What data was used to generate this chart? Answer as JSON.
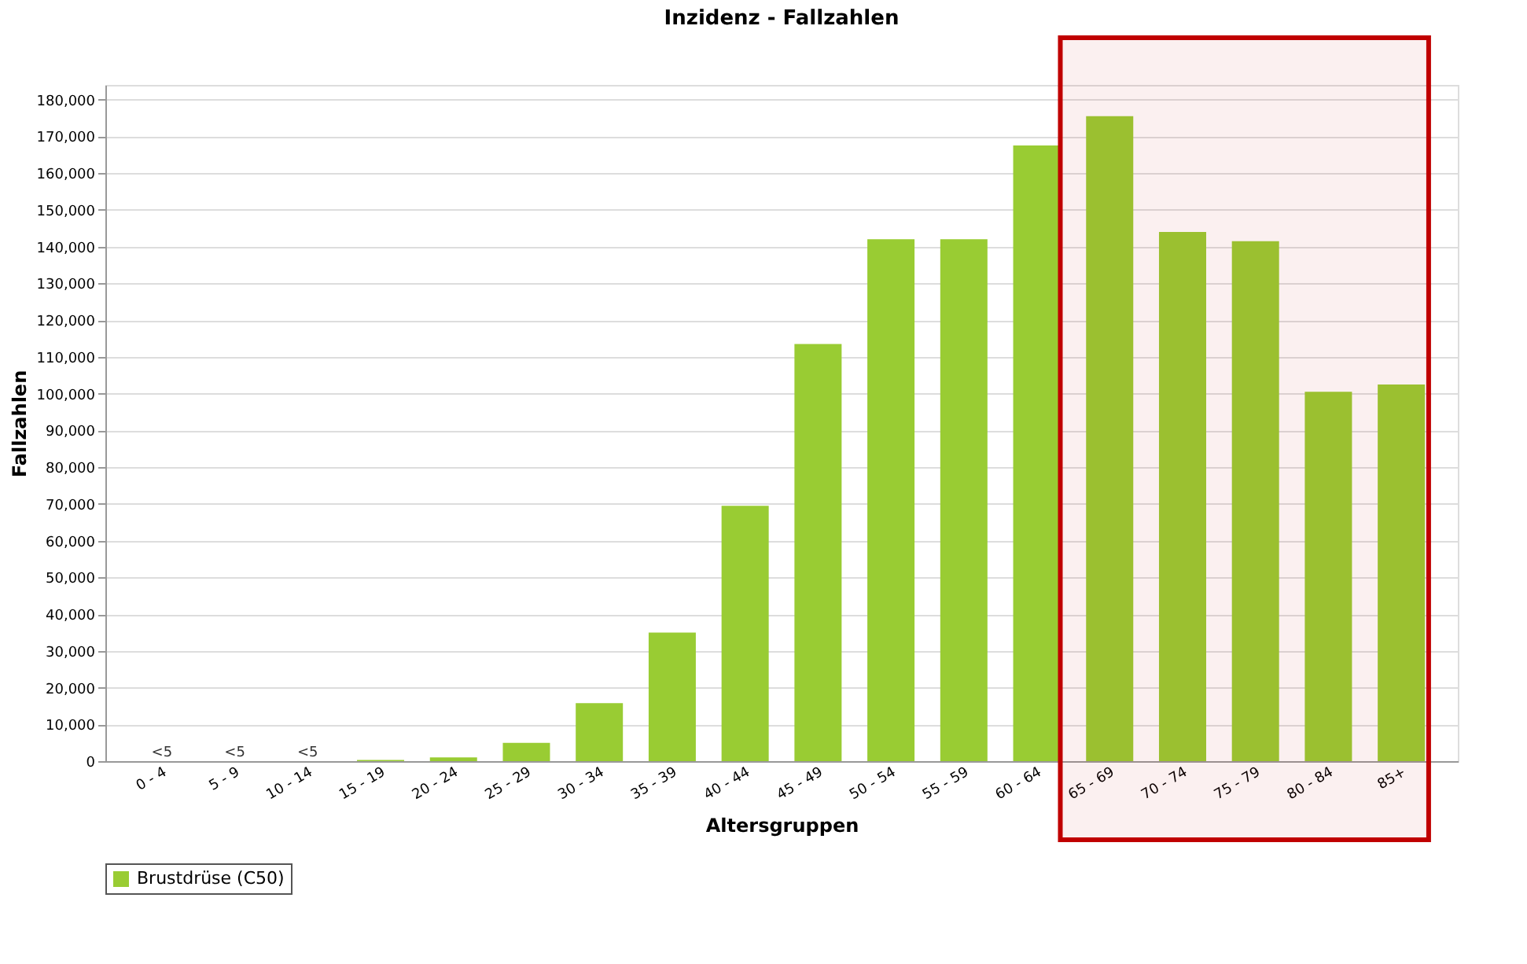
{
  "chart_data": {
    "type": "bar",
    "title": "Inzidenz - Fallzahlen",
    "xlabel": "Altersgruppen",
    "ylabel": "Fallzahlen",
    "categories": [
      "0 - 4",
      "5 - 9",
      "10 - 14",
      "15 - 19",
      "20 - 24",
      "25 - 29",
      "30 - 34",
      "35 - 39",
      "40 - 44",
      "45 - 49",
      "50 - 54",
      "55 - 59",
      "60 - 64",
      "65 - 69",
      "70 - 74",
      "75 - 79",
      "80 - 84",
      "85+"
    ],
    "series": [
      {
        "name": "Brustdrüse (C50)",
        "color": "#99cc33",
        "values": [
          2,
          2,
          2,
          300,
          1000,
          5000,
          15800,
          35000,
          69500,
          113500,
          142000,
          142000,
          167500,
          175500,
          144000,
          141500,
          100500,
          102500
        ],
        "value_labels": [
          "<5",
          "<5",
          "<5",
          null,
          null,
          null,
          null,
          null,
          null,
          null,
          null,
          null,
          null,
          null,
          null,
          null,
          null,
          null
        ]
      }
    ],
    "ylim": [
      0,
      184000
    ],
    "yticks": [
      {
        "value": 0,
        "label": "0"
      },
      {
        "value": 10000,
        "label": "10,000"
      },
      {
        "value": 20000,
        "label": "20,000"
      },
      {
        "value": 30000,
        "label": "30,000"
      },
      {
        "value": 40000,
        "label": "40,000"
      },
      {
        "value": 50000,
        "label": "50,000"
      },
      {
        "value": 60000,
        "label": "60,000"
      },
      {
        "value": 70000,
        "label": "70,000"
      },
      {
        "value": 80000,
        "label": "80,000"
      },
      {
        "value": 90000,
        "label": "90,000"
      },
      {
        "value": 100000,
        "label": "100,000"
      },
      {
        "value": 110000,
        "label": "110,000"
      },
      {
        "value": 120000,
        "label": "120,000"
      },
      {
        "value": 130000,
        "label": "130,000"
      },
      {
        "value": 140000,
        "label": "140,000"
      },
      {
        "value": 150000,
        "label": "150,000"
      },
      {
        "value": 160000,
        "label": "160,000"
      },
      {
        "value": 170000,
        "label": "170,000"
      },
      {
        "value": 180000,
        "label": "180,000"
      }
    ],
    "grid": "y",
    "legend": "bottom",
    "bands": [
      {
        "axis": "x",
        "from": "65 - 69",
        "to": "85+",
        "color": "#c00000"
      }
    ]
  }
}
